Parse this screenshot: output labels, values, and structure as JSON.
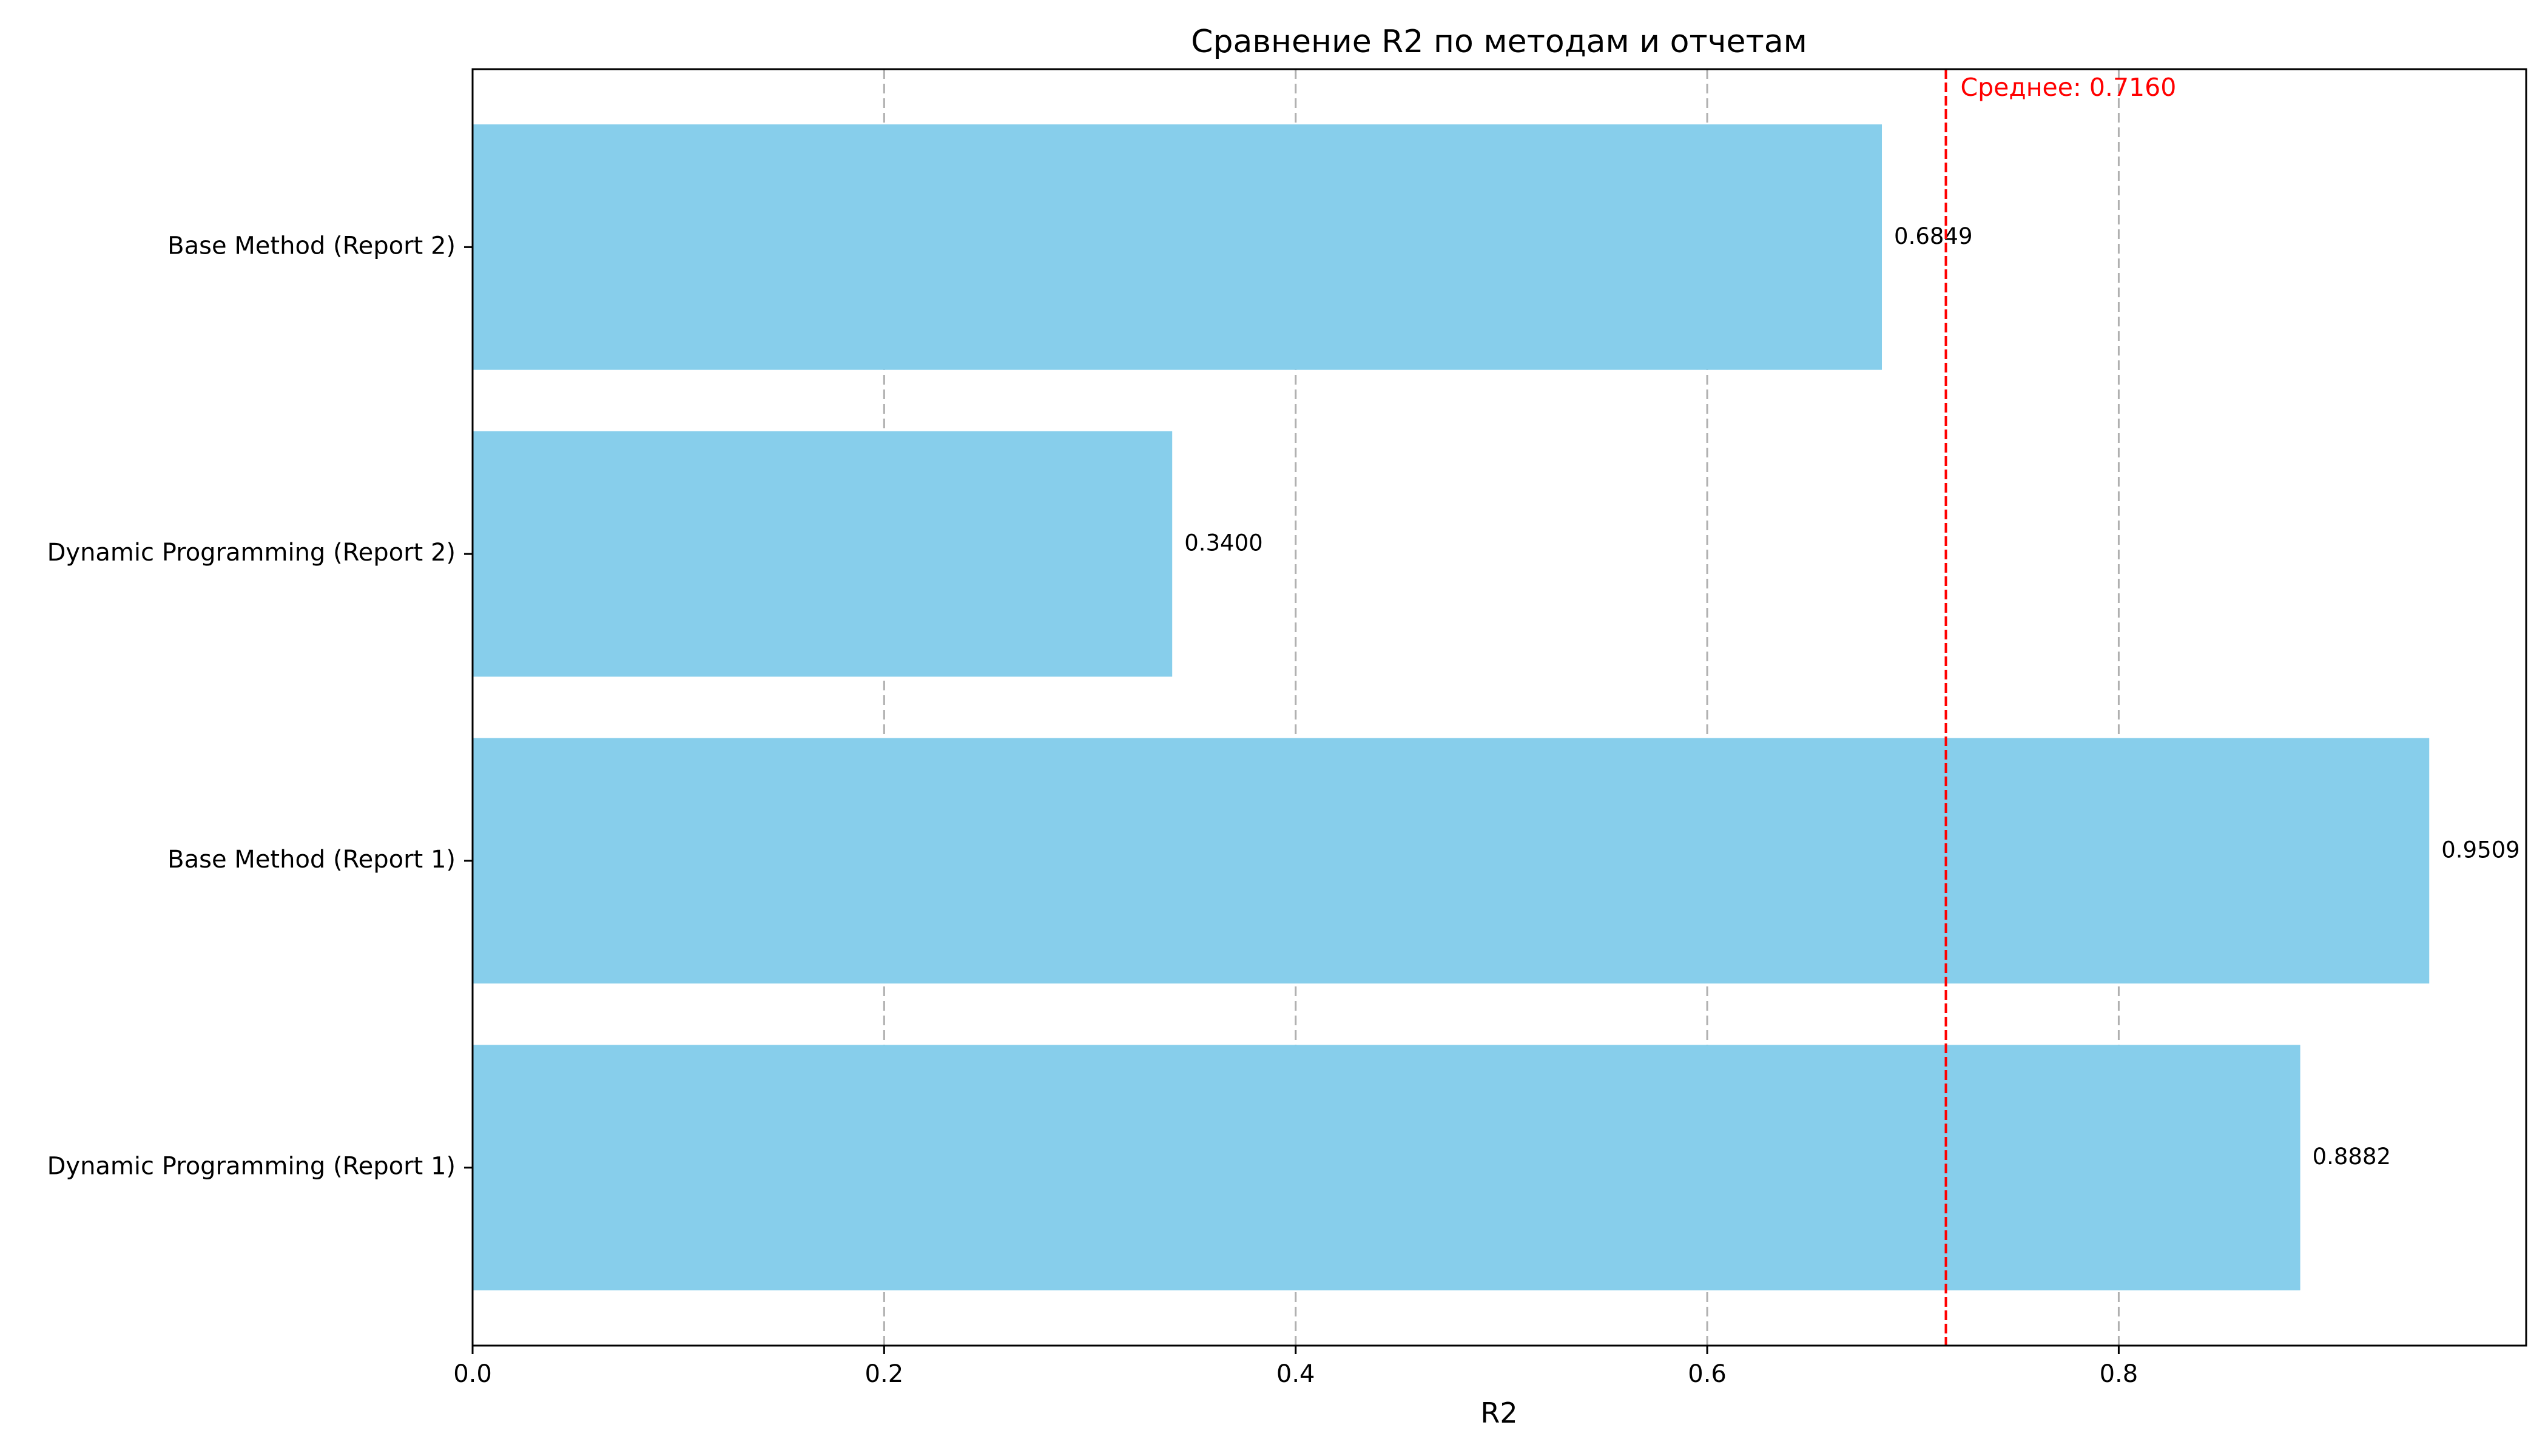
{
  "chart_data": {
    "type": "bar",
    "orientation": "horizontal",
    "title": "Сравнение R2 по методам и отчетам",
    "xlabel": "R2",
    "ylabel": "",
    "xlim": [
      0,
      0.998
    ],
    "x_ticks": [
      0.0,
      0.2,
      0.4,
      0.6,
      0.8
    ],
    "x_tick_labels": [
      "0.0",
      "0.2",
      "0.4",
      "0.6",
      "0.8"
    ],
    "grid": "x-dashed",
    "categories": [
      "Dynamic Programming (Report 1)",
      "Base Method (Report 1)",
      "Dynamic Programming (Report 2)",
      "Base Method (Report 2)"
    ],
    "values": [
      0.8882,
      0.9509,
      0.34,
      0.6849
    ],
    "value_labels": [
      "0.8882",
      "0.9509",
      "0.3400",
      "0.6849"
    ],
    "bar_color": "#87ceeb",
    "mean": {
      "value": 0.716,
      "label": "Среднее: 0.7160",
      "color": "#ff0000"
    }
  }
}
